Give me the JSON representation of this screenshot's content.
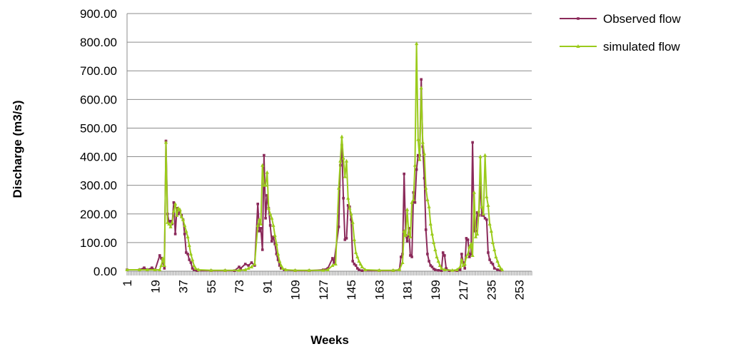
{
  "chart_data": {
    "type": "line",
    "title": "",
    "xlabel": "Weeks",
    "ylabel": "Discharge (m3/s)",
    "ylim": [
      0,
      900
    ],
    "yticks": [
      "0.00",
      "100.00",
      "200.00",
      "300.00",
      "400.00",
      "500.00",
      "600.00",
      "700.00",
      "800.00",
      "900.00"
    ],
    "xticks": [
      "1",
      "19",
      "37",
      "55",
      "73",
      "91",
      "109",
      "127",
      "145",
      "163",
      "181",
      "199",
      "217",
      "235",
      "253"
    ],
    "grid": "horizontal",
    "legend_position": "top-right",
    "series": [
      {
        "name": "Observed flow",
        "color": "#8B2A5A",
        "marker": "square",
        "points": [
          [
            1,
            5
          ],
          [
            9,
            5
          ],
          [
            12,
            12
          ],
          [
            14,
            5
          ],
          [
            17,
            12
          ],
          [
            19,
            5
          ],
          [
            22,
            55
          ],
          [
            23,
            45
          ],
          [
            24,
            30
          ],
          [
            25,
            10
          ],
          [
            26,
            455
          ],
          [
            27,
            200
          ],
          [
            28,
            170
          ],
          [
            29,
            175
          ],
          [
            30,
            165
          ],
          [
            31,
            240
          ],
          [
            32,
            130
          ],
          [
            33,
            220
          ],
          [
            34,
            200
          ],
          [
            35,
            210
          ],
          [
            36,
            195
          ],
          [
            37,
            180
          ],
          [
            38,
            130
          ],
          [
            39,
            65
          ],
          [
            40,
            60
          ],
          [
            41,
            40
          ],
          [
            42,
            30
          ],
          [
            43,
            10
          ],
          [
            44,
            5
          ],
          [
            46,
            2
          ],
          [
            55,
            2
          ],
          [
            64,
            2
          ],
          [
            70,
            2
          ],
          [
            73,
            15
          ],
          [
            74,
            10
          ],
          [
            77,
            25
          ],
          [
            79,
            20
          ],
          [
            81,
            30
          ],
          [
            83,
            20
          ],
          [
            85,
            235
          ],
          [
            86,
            140
          ],
          [
            87,
            150
          ],
          [
            88,
            75
          ],
          [
            89,
            405
          ],
          [
            90,
            185
          ],
          [
            91,
            265
          ],
          [
            92,
            220
          ],
          [
            93,
            160
          ],
          [
            94,
            105
          ],
          [
            95,
            120
          ],
          [
            96,
            95
          ],
          [
            97,
            60
          ],
          [
            98,
            40
          ],
          [
            99,
            20
          ],
          [
            100,
            10
          ],
          [
            102,
            5
          ],
          [
            109,
            2
          ],
          [
            118,
            2
          ],
          [
            127,
            5
          ],
          [
            130,
            10
          ],
          [
            133,
            45
          ],
          [
            134,
            30
          ],
          [
            137,
            155
          ],
          [
            138,
            370
          ],
          [
            139,
            440
          ],
          [
            140,
            255
          ],
          [
            141,
            110
          ],
          [
            142,
            115
          ],
          [
            143,
            230
          ],
          [
            144,
            225
          ],
          [
            145,
            180
          ],
          [
            146,
            35
          ],
          [
            147,
            25
          ],
          [
            148,
            20
          ],
          [
            149,
            10
          ],
          [
            150,
            5
          ],
          [
            152,
            2
          ],
          [
            163,
            2
          ],
          [
            172,
            2
          ],
          [
            176,
            5
          ],
          [
            177,
            50
          ],
          [
            178,
            60
          ],
          [
            179,
            340
          ],
          [
            180,
            125
          ],
          [
            181,
            105
          ],
          [
            182,
            150
          ],
          [
            183,
            55
          ],
          [
            184,
            50
          ],
          [
            185,
            275
          ],
          [
            186,
            240
          ],
          [
            187,
            355
          ],
          [
            188,
            405
          ],
          [
            189,
            405
          ],
          [
            190,
            670
          ],
          [
            191,
            435
          ],
          [
            192,
            325
          ],
          [
            193,
            145
          ],
          [
            194,
            60
          ],
          [
            195,
            35
          ],
          [
            196,
            20
          ],
          [
            197,
            15
          ],
          [
            198,
            8
          ],
          [
            199,
            5
          ],
          [
            201,
            3
          ],
          [
            203,
            2
          ],
          [
            204,
            65
          ],
          [
            205,
            55
          ],
          [
            206,
            10
          ],
          [
            208,
            2
          ],
          [
            213,
            2
          ],
          [
            215,
            5
          ],
          [
            216,
            60
          ],
          [
            217,
            30
          ],
          [
            218,
            10
          ],
          [
            219,
            115
          ],
          [
            220,
            110
          ],
          [
            221,
            50
          ],
          [
            222,
            60
          ],
          [
            223,
            450
          ],
          [
            224,
            140
          ],
          [
            225,
            140
          ],
          [
            226,
            205
          ],
          [
            227,
            195
          ],
          [
            228,
            310
          ],
          [
            229,
            195
          ],
          [
            230,
            195
          ],
          [
            231,
            185
          ],
          [
            232,
            180
          ],
          [
            233,
            65
          ],
          [
            234,
            40
          ],
          [
            235,
            30
          ],
          [
            236,
            25
          ],
          [
            237,
            10
          ],
          [
            239,
            5
          ],
          [
            241,
            3
          ]
        ]
      },
      {
        "name": "simulated flow",
        "color": "#9BCB1C",
        "marker": "triangle",
        "points": [
          [
            1,
            5
          ],
          [
            9,
            5
          ],
          [
            14,
            5
          ],
          [
            19,
            5
          ],
          [
            22,
            5
          ],
          [
            23,
            20
          ],
          [
            24,
            45
          ],
          [
            25,
            20
          ],
          [
            26,
            450
          ],
          [
            27,
            170
          ],
          [
            28,
            165
          ],
          [
            29,
            155
          ],
          [
            30,
            170
          ],
          [
            31,
            210
          ],
          [
            32,
            235
          ],
          [
            33,
            195
          ],
          [
            34,
            220
          ],
          [
            35,
            215
          ],
          [
            36,
            190
          ],
          [
            37,
            180
          ],
          [
            38,
            160
          ],
          [
            39,
            140
          ],
          [
            40,
            120
          ],
          [
            41,
            90
          ],
          [
            42,
            60
          ],
          [
            43,
            40
          ],
          [
            44,
            20
          ],
          [
            45,
            10
          ],
          [
            47,
            5
          ],
          [
            55,
            3
          ],
          [
            64,
            3
          ],
          [
            73,
            3
          ],
          [
            77,
            5
          ],
          [
            79,
            10
          ],
          [
            81,
            15
          ],
          [
            83,
            25
          ],
          [
            85,
            160
          ],
          [
            86,
            180
          ],
          [
            87,
            165
          ],
          [
            88,
            370
          ],
          [
            89,
            300
          ],
          [
            90,
            300
          ],
          [
            91,
            345
          ],
          [
            92,
            220
          ],
          [
            93,
            200
          ],
          [
            94,
            185
          ],
          [
            95,
            160
          ],
          [
            96,
            125
          ],
          [
            97,
            95
          ],
          [
            98,
            60
          ],
          [
            99,
            35
          ],
          [
            100,
            20
          ],
          [
            101,
            10
          ],
          [
            103,
            5
          ],
          [
            109,
            3
          ],
          [
            118,
            3
          ],
          [
            127,
            3
          ],
          [
            130,
            5
          ],
          [
            133,
            20
          ],
          [
            135,
            25
          ],
          [
            137,
            290
          ],
          [
            138,
            385
          ],
          [
            139,
            470
          ],
          [
            140,
            395
          ],
          [
            141,
            330
          ],
          [
            142,
            385
          ],
          [
            143,
            255
          ],
          [
            144,
            220
          ],
          [
            145,
            200
          ],
          [
            146,
            170
          ],
          [
            147,
            110
          ],
          [
            148,
            65
          ],
          [
            149,
            50
          ],
          [
            150,
            35
          ],
          [
            151,
            25
          ],
          [
            152,
            15
          ],
          [
            154,
            5
          ],
          [
            163,
            3
          ],
          [
            172,
            3
          ],
          [
            176,
            5
          ],
          [
            178,
            30
          ],
          [
            179,
            140
          ],
          [
            180,
            125
          ],
          [
            181,
            215
          ],
          [
            182,
            130
          ],
          [
            183,
            120
          ],
          [
            184,
            240
          ],
          [
            185,
            250
          ],
          [
            186,
            370
          ],
          [
            187,
            795
          ],
          [
            188,
            460
          ],
          [
            189,
            390
          ],
          [
            190,
            640
          ],
          [
            191,
            450
          ],
          [
            192,
            410
          ],
          [
            193,
            290
          ],
          [
            194,
            250
          ],
          [
            195,
            225
          ],
          [
            196,
            165
          ],
          [
            197,
            130
          ],
          [
            198,
            100
          ],
          [
            199,
            75
          ],
          [
            200,
            50
          ],
          [
            201,
            35
          ],
          [
            202,
            20
          ],
          [
            203,
            10
          ],
          [
            205,
            5
          ],
          [
            210,
            3
          ],
          [
            213,
            5
          ],
          [
            215,
            15
          ],
          [
            216,
            40
          ],
          [
            217,
            20
          ],
          [
            218,
            25
          ],
          [
            219,
            50
          ],
          [
            220,
            60
          ],
          [
            221,
            85
          ],
          [
            222,
            95
          ],
          [
            223,
            55
          ],
          [
            224,
            275
          ],
          [
            225,
            120
          ],
          [
            226,
            130
          ],
          [
            227,
            210
          ],
          [
            228,
            400
          ],
          [
            229,
            225
          ],
          [
            230,
            200
          ],
          [
            231,
            405
          ],
          [
            232,
            260
          ],
          [
            233,
            230
          ],
          [
            234,
            165
          ],
          [
            235,
            140
          ],
          [
            236,
            100
          ],
          [
            237,
            75
          ],
          [
            238,
            50
          ],
          [
            239,
            35
          ],
          [
            240,
            20
          ],
          [
            241,
            10
          ],
          [
            242,
            5
          ]
        ]
      }
    ]
  }
}
